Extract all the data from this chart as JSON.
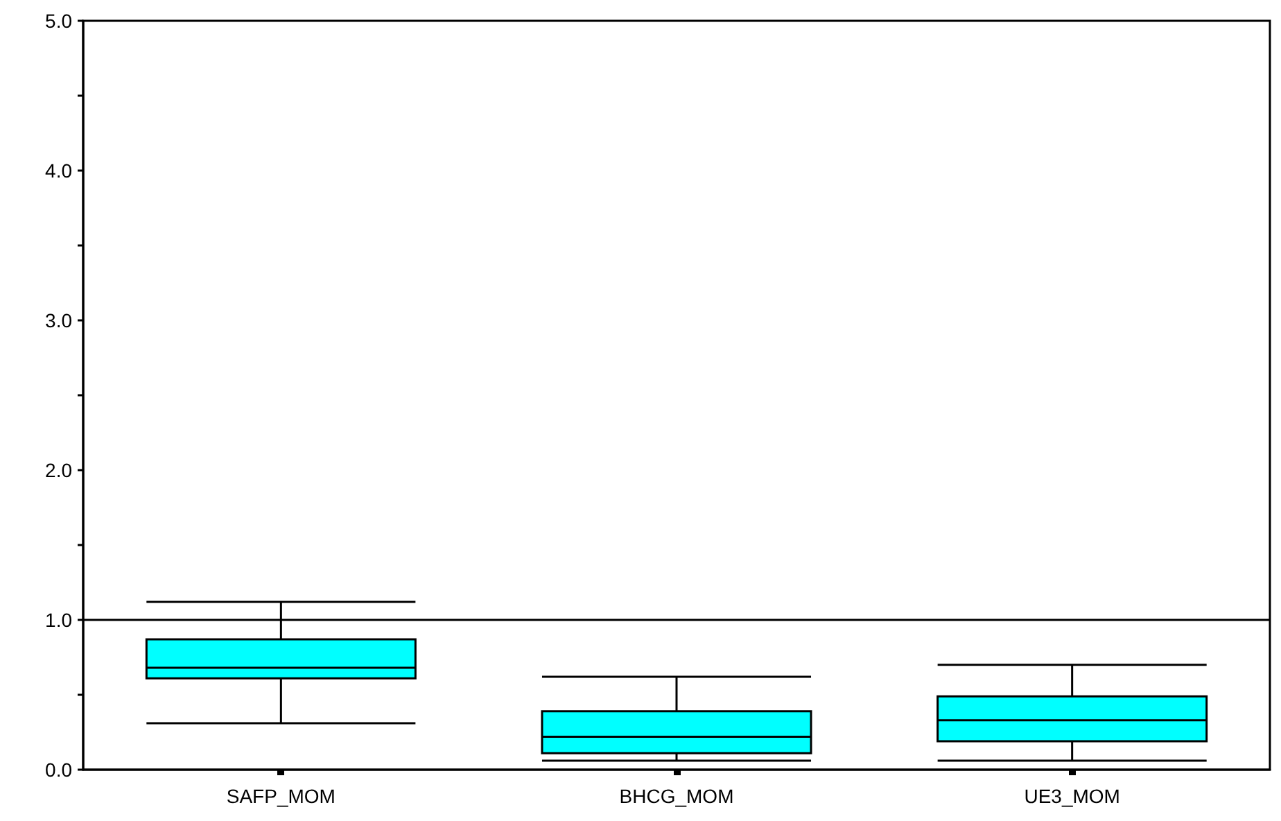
{
  "chart_data": {
    "type": "box",
    "categories": [
      "SAFP_MOM",
      "BHCG_MOM",
      "UE3_MOM"
    ],
    "series": [
      {
        "color": "#00ffff",
        "boxes": [
          {
            "low": 0.31,
            "q1": 0.61,
            "median": 0.68,
            "q3": 0.87,
            "high": 1.12
          },
          {
            "low": 0.06,
            "q1": 0.11,
            "median": 0.22,
            "q3": 0.39,
            "high": 0.62
          },
          {
            "low": 0.06,
            "q1": 0.19,
            "median": 0.33,
            "q3": 0.49,
            "high": 0.7
          }
        ]
      }
    ],
    "ylim": [
      0,
      5
    ],
    "yticks": [
      {
        "value": 0,
        "label": "0.0"
      },
      {
        "value": 0.5,
        "label": null
      },
      {
        "value": 1,
        "label": "1.0"
      },
      {
        "value": 1.5,
        "label": null
      },
      {
        "value": 2,
        "label": "2.0"
      },
      {
        "value": 2.5,
        "label": null
      },
      {
        "value": 3,
        "label": "3.0"
      },
      {
        "value": 3.5,
        "label": null
      },
      {
        "value": 4,
        "label": "4.0"
      },
      {
        "value": 4.5,
        "label": null
      },
      {
        "value": 5,
        "label": "5.0"
      }
    ],
    "ref_lines": [
      {
        "axis": "y",
        "value": 1,
        "color": "#000000"
      }
    ],
    "grid": false
  }
}
